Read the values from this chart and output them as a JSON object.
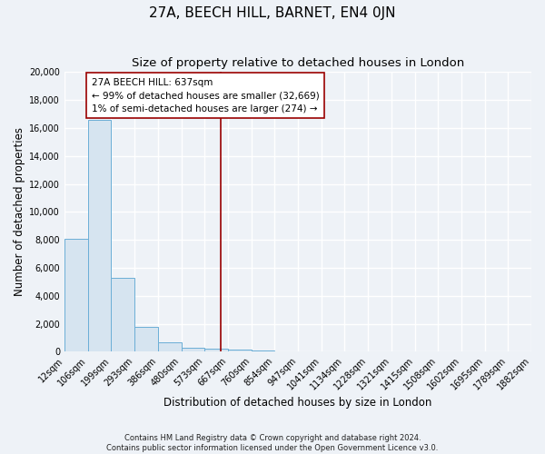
{
  "title": "27A, BEECH HILL, BARNET, EN4 0JN",
  "subtitle": "Size of property relative to detached houses in London",
  "xlabel": "Distribution of detached houses by size in London",
  "ylabel": "Number of detached properties",
  "bin_labels": [
    "12sqm",
    "106sqm",
    "199sqm",
    "293sqm",
    "386sqm",
    "480sqm",
    "573sqm",
    "667sqm",
    "760sqm",
    "854sqm",
    "947sqm",
    "1041sqm",
    "1134sqm",
    "1228sqm",
    "1321sqm",
    "1415sqm",
    "1508sqm",
    "1602sqm",
    "1695sqm",
    "1789sqm",
    "1882sqm"
  ],
  "bin_edges": [
    12,
    106,
    199,
    293,
    386,
    480,
    573,
    667,
    760,
    854,
    947,
    1041,
    1134,
    1228,
    1321,
    1415,
    1508,
    1602,
    1695,
    1789,
    1882
  ],
  "bar_heights": [
    8100,
    16600,
    5300,
    1750,
    700,
    280,
    200,
    130,
    80,
    50,
    30,
    20,
    15,
    10,
    8,
    6,
    5,
    4,
    3,
    2
  ],
  "bar_color": "#d6e4f0",
  "bar_edge_color": "#6baed6",
  "vline_x": 637,
  "vline_color": "#990000",
  "annotation_title": "27A BEECH HILL: 637sqm",
  "annotation_line1": "← 99% of detached houses are smaller (32,669)",
  "annotation_line2": "1% of semi-detached houses are larger (274) →",
  "footer_line1": "Contains HM Land Registry data © Crown copyright and database right 2024.",
  "footer_line2": "Contains public sector information licensed under the Open Government Licence v3.0.",
  "ylim": [
    0,
    20000
  ],
  "yticks": [
    0,
    2000,
    4000,
    6000,
    8000,
    10000,
    12000,
    14000,
    16000,
    18000,
    20000
  ],
  "background_color": "#eef2f7",
  "grid_color": "#ffffff",
  "title_fontsize": 11,
  "subtitle_fontsize": 9.5,
  "axis_label_fontsize": 8.5,
  "tick_fontsize": 7,
  "annotation_fontsize": 7.5,
  "footer_fontsize": 6
}
